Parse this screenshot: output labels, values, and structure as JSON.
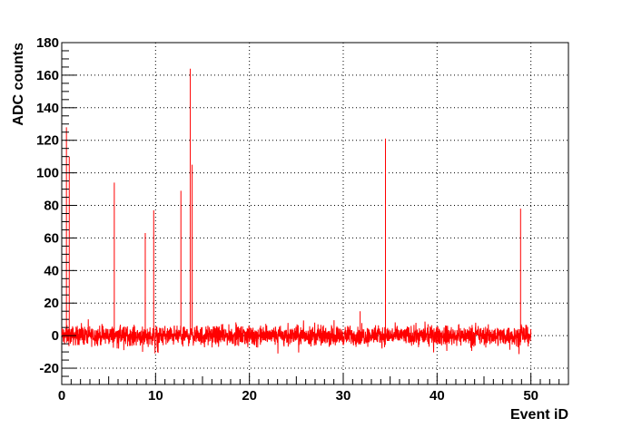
{
  "chart_data": {
    "type": "line",
    "xlabel": "Event iD",
    "ylabel": "ADC counts",
    "xlim": [
      0,
      54
    ],
    "ylim": [
      -30,
      180
    ],
    "x_ticks": [
      0,
      10,
      20,
      30,
      40,
      50
    ],
    "y_ticks": [
      -20,
      0,
      20,
      40,
      60,
      80,
      100,
      120,
      140,
      160,
      180
    ],
    "x_tick_labels": [
      "0",
      "10",
      "20",
      "30",
      "40",
      "50"
    ],
    "y_tick_labels": [
      "-20",
      "0",
      "20",
      "40",
      "60",
      "80",
      "100",
      "120",
      "140",
      "160",
      "180"
    ],
    "grid": true,
    "series": [
      {
        "color": "#ff0000",
        "baseline_range": [
          -12,
          11
        ],
        "data_range": [
          0,
          50
        ],
        "peaks": [
          {
            "x": 0.5,
            "y": 128
          },
          {
            "x": 0.8,
            "y": 110
          },
          {
            "x": 5.6,
            "y": 94
          },
          {
            "x": 8.9,
            "y": 63
          },
          {
            "x": 9.8,
            "y": 77
          },
          {
            "x": 12.7,
            "y": 89
          },
          {
            "x": 13.7,
            "y": 164
          },
          {
            "x": 13.9,
            "y": 105
          },
          {
            "x": 31.8,
            "y": 15
          },
          {
            "x": 34.5,
            "y": 121
          },
          {
            "x": 48.9,
            "y": 78
          }
        ]
      }
    ]
  }
}
